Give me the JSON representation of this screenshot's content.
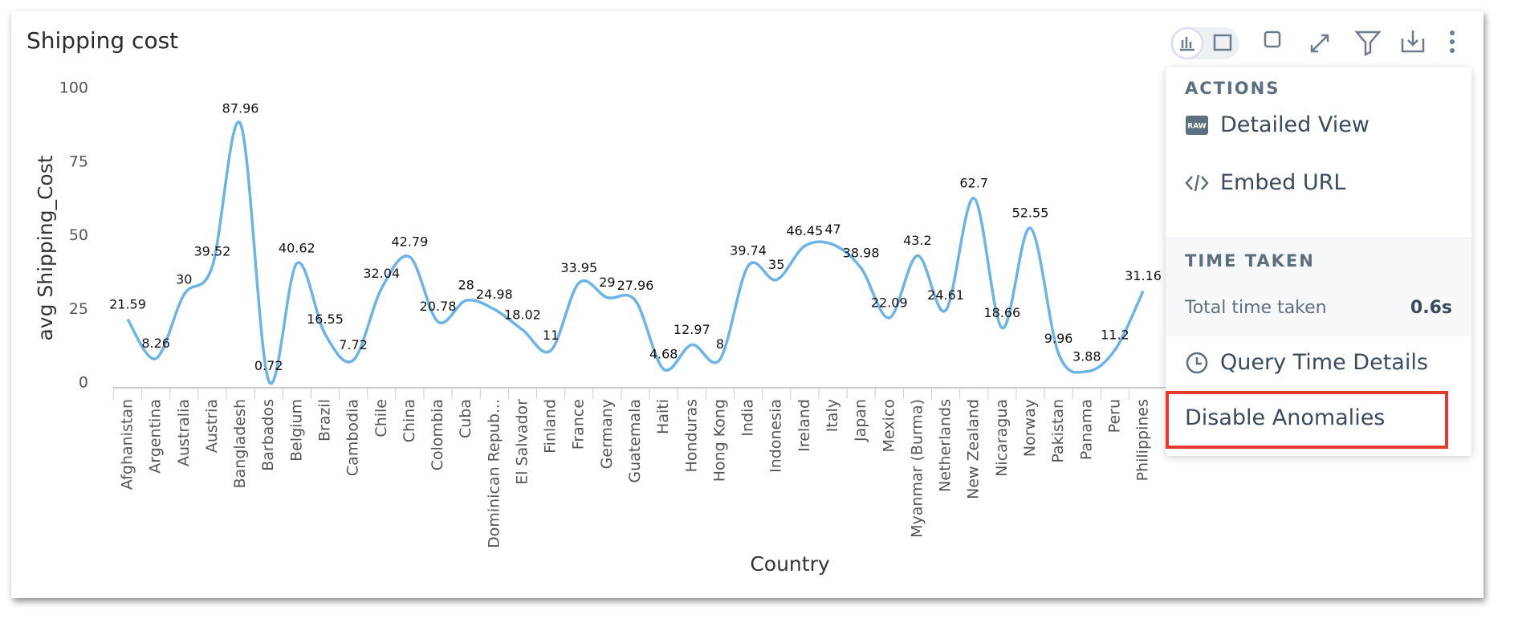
{
  "chart_data": {
    "type": "line",
    "title": "Shipping cost",
    "x_label": "Country",
    "y_label": "avg Shipping_Cost",
    "categories": [
      "Afghanistan",
      "Argentina",
      "Australia",
      "Austria",
      "Bangladesh",
      "Barbados",
      "Belgium",
      "Brazil",
      "Cambodia",
      "Chile",
      "China",
      "Colombia",
      "Cuba",
      "Dominican Repub...",
      "El Salvador",
      "Finland",
      "France",
      "Germany",
      "Guatemala",
      "Haiti",
      "Honduras",
      "Hong Kong",
      "India",
      "Indonesia",
      "Ireland",
      "Italy",
      "Japan",
      "Mexico",
      "Myanmar (Burma)",
      "Netherlands",
      "New Zealand",
      "Nicaragua",
      "Norway",
      "Pakistan",
      "Panama",
      "Peru",
      "Philippines"
    ],
    "values": [
      21.59,
      8.26,
      30,
      39.52,
      87.96,
      0.72,
      40.62,
      16.55,
      7.72,
      32.04,
      42.79,
      20.78,
      28,
      24.98,
      18.02,
      11,
      33.95,
      29,
      27.96,
      4.68,
      12.97,
      8,
      39.74,
      35,
      46.45,
      47,
      38.98,
      22.09,
      43.2,
      24.61,
      62.7,
      18.66,
      52.55,
      9.96,
      3.88,
      11.2,
      31.16
    ],
    "color": "#6cb3e6",
    "ylim": [
      0,
      100
    ],
    "yticks": [
      0,
      25,
      50,
      75,
      100
    ]
  },
  "menu": {
    "actions_heading": "ACTIONS",
    "detailed_view": "Detailed View",
    "embed_url": "Embed URL",
    "time_heading": "TIME TAKEN",
    "total_time_label": "Total time taken",
    "total_time_value": "0.6s",
    "query_time_details": "Query Time Details",
    "disable_anomalies": "Disable Anomalies"
  }
}
